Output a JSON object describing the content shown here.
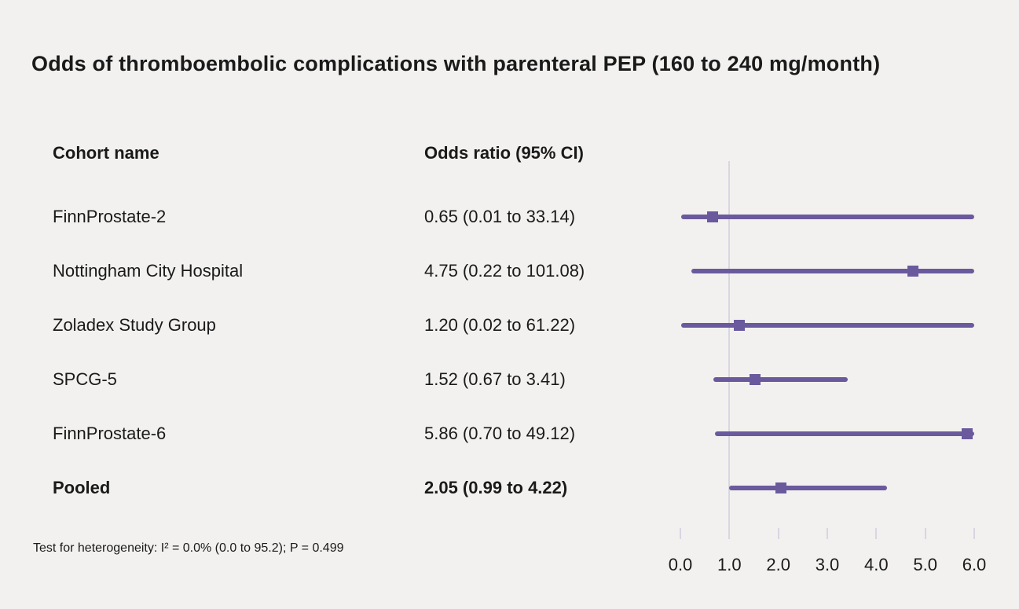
{
  "title": "Odds of thromboembolic complications with parenteral PEP (160 to 240 mg/month)",
  "columns": {
    "cohort": "Cohort name",
    "odds_ratio": "Odds ratio (95% CI)"
  },
  "footnote": "Test for heterogeneity: I² = 0.0% (0.0 to 95.2); P = 0.499",
  "colors": {
    "accent": "#6a5a9d",
    "axis": "#d9d6e2",
    "background": "#f2f1ef",
    "text": "#1a1a1a"
  },
  "chart_data": {
    "type": "forest",
    "title": "Odds of thromboembolic complications with parenteral PEP (160 to 240 mg/month)",
    "xlim": [
      0.0,
      6.0
    ],
    "x_ticks": [
      0.0,
      1.0,
      2.0,
      3.0,
      4.0,
      5.0,
      6.0
    ],
    "x_tick_labels": [
      "0.0",
      "1.0",
      "2.0",
      "3.0",
      "4.0",
      "5.0",
      "6.0"
    ],
    "reference_line": 1.0,
    "grid": false,
    "rows": [
      {
        "cohort": "FinnProstate-2",
        "label": "0.65 (0.01 to 33.14)",
        "or": 0.65,
        "ci_low": 0.01,
        "ci_high": 33.14,
        "pooled": false
      },
      {
        "cohort": "Nottingham City Hospital",
        "label": "4.75 (0.22 to 101.08)",
        "or": 4.75,
        "ci_low": 0.22,
        "ci_high": 101.08,
        "pooled": false
      },
      {
        "cohort": "Zoladex Study Group",
        "label": "1.20 (0.02 to 61.22)",
        "or": 1.2,
        "ci_low": 0.02,
        "ci_high": 61.22,
        "pooled": false
      },
      {
        "cohort": "SPCG-5",
        "label": "1.52 (0.67 to 3.41)",
        "or": 1.52,
        "ci_low": 0.67,
        "ci_high": 3.41,
        "pooled": false
      },
      {
        "cohort": "FinnProstate-6",
        "label": "5.86 (0.70 to 49.12)",
        "or": 5.86,
        "ci_low": 0.7,
        "ci_high": 49.12,
        "pooled": false
      },
      {
        "cohort": "Pooled",
        "label": "2.05 (0.99 to 4.22)",
        "or": 2.05,
        "ci_low": 0.99,
        "ci_high": 4.22,
        "pooled": true
      }
    ]
  }
}
